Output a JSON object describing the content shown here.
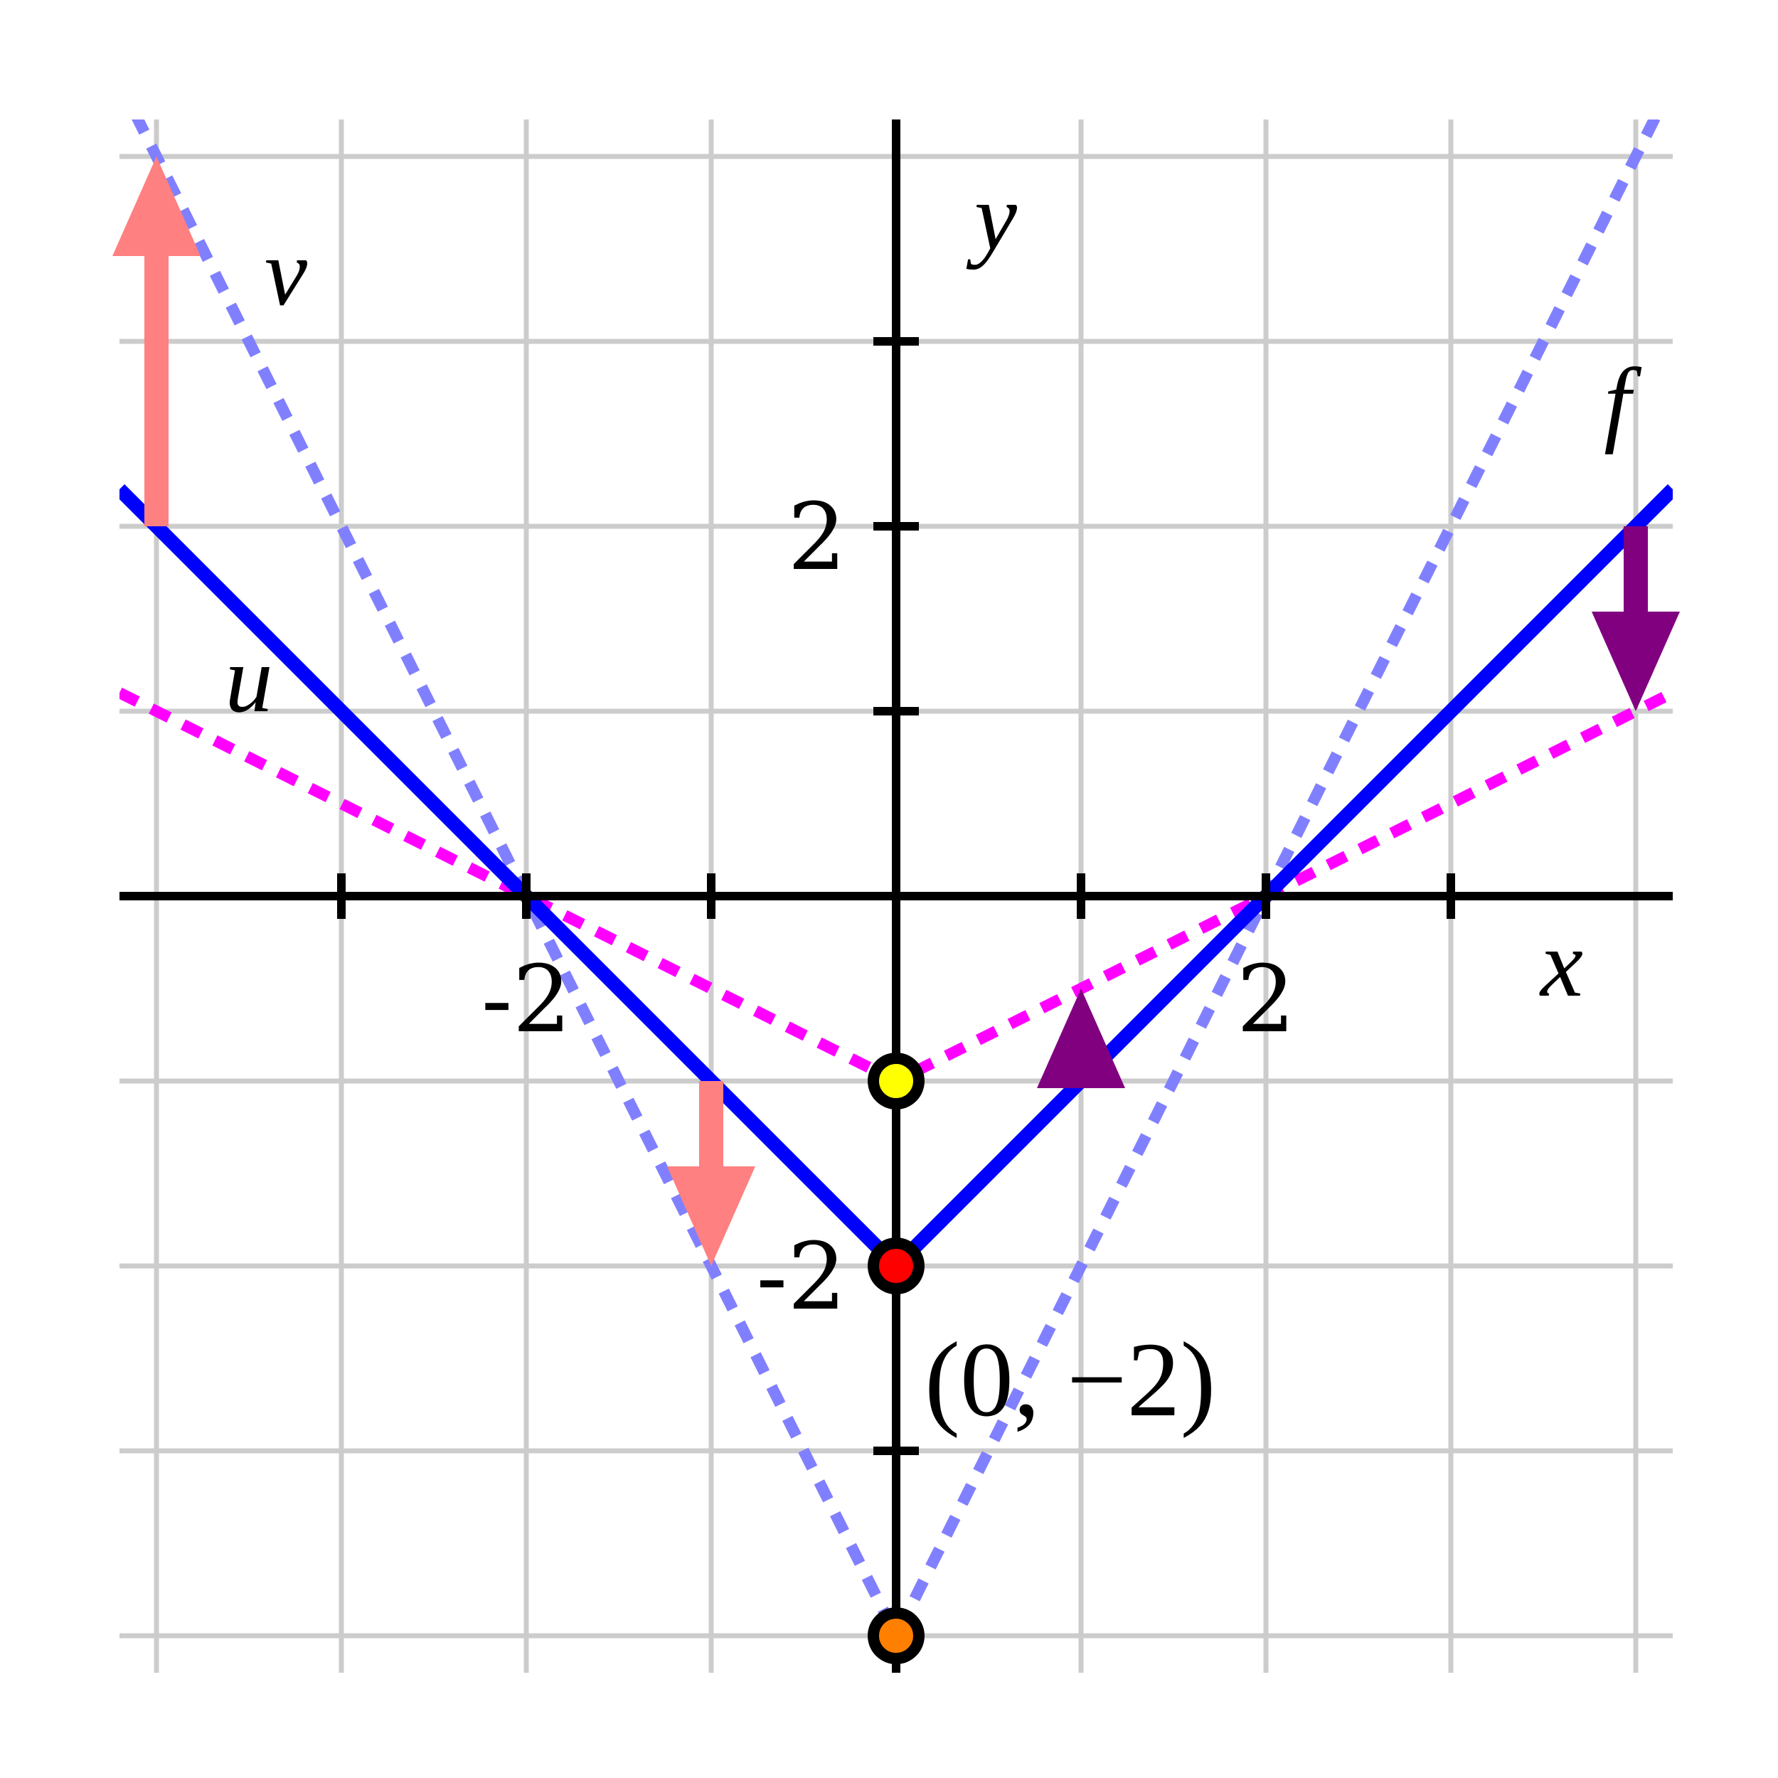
{
  "chart_data": {
    "type": "line",
    "xlim": [
      -4.2,
      4.2
    ],
    "ylim": [
      -4.2,
      4.2
    ],
    "grid": true,
    "grid_step": 1,
    "axis_labels": {
      "x": "x",
      "y": "y"
    },
    "x_tick_labels": [
      {
        "value": -2,
        "text": "-2"
      },
      {
        "value": 2,
        "text": "2"
      }
    ],
    "y_tick_labels": [
      {
        "value": 2,
        "text": "2"
      },
      {
        "value": -2,
        "text": "-2"
      }
    ],
    "series": [
      {
        "name": "f",
        "style": "solid",
        "color": "#0000ff",
        "x": [
          -4.2,
          0,
          4.2
        ],
        "y": [
          2.2,
          -2,
          2.2
        ]
      },
      {
        "name": "v",
        "style": "dotted",
        "color": "#8080ff",
        "x": [
          -4.2,
          0,
          4.2
        ],
        "y": [
          4.4,
          -4,
          4.4
        ]
      },
      {
        "name": "u",
        "style": "dotted",
        "color": "#ff00ff",
        "x": [
          -4.2,
          0,
          4.2
        ],
        "y": [
          1.1,
          -1,
          1.1
        ]
      }
    ],
    "series_labels": [
      {
        "text": "v",
        "x": -3.3,
        "y": 3.2
      },
      {
        "text": "u",
        "x": -3.5,
        "y": 1.0
      },
      {
        "text": "f",
        "x": 3.9,
        "y": 2.5
      }
    ],
    "arrows": [
      {
        "color": "#ff8080",
        "from": [
          -4,
          2
        ],
        "to": [
          -4,
          4
        ]
      },
      {
        "color": "#ff8080",
        "from": [
          -1,
          -1
        ],
        "to": [
          -1,
          -2
        ]
      },
      {
        "color": "#800080",
        "from": [
          4,
          2
        ],
        "to": [
          4,
          1
        ]
      },
      {
        "color": "#800080",
        "from": [
          1,
          -1
        ],
        "to": [
          1,
          -0.5
        ]
      }
    ],
    "points": [
      {
        "x": 0,
        "y": -1,
        "color": "#ffff00"
      },
      {
        "x": 0,
        "y": -2,
        "color": "#ff0000"
      },
      {
        "x": 0,
        "y": -4,
        "color": "#ff8000"
      }
    ],
    "annotations": [
      {
        "text": "(0, −2)",
        "x": 0,
        "y": -2
      }
    ]
  }
}
